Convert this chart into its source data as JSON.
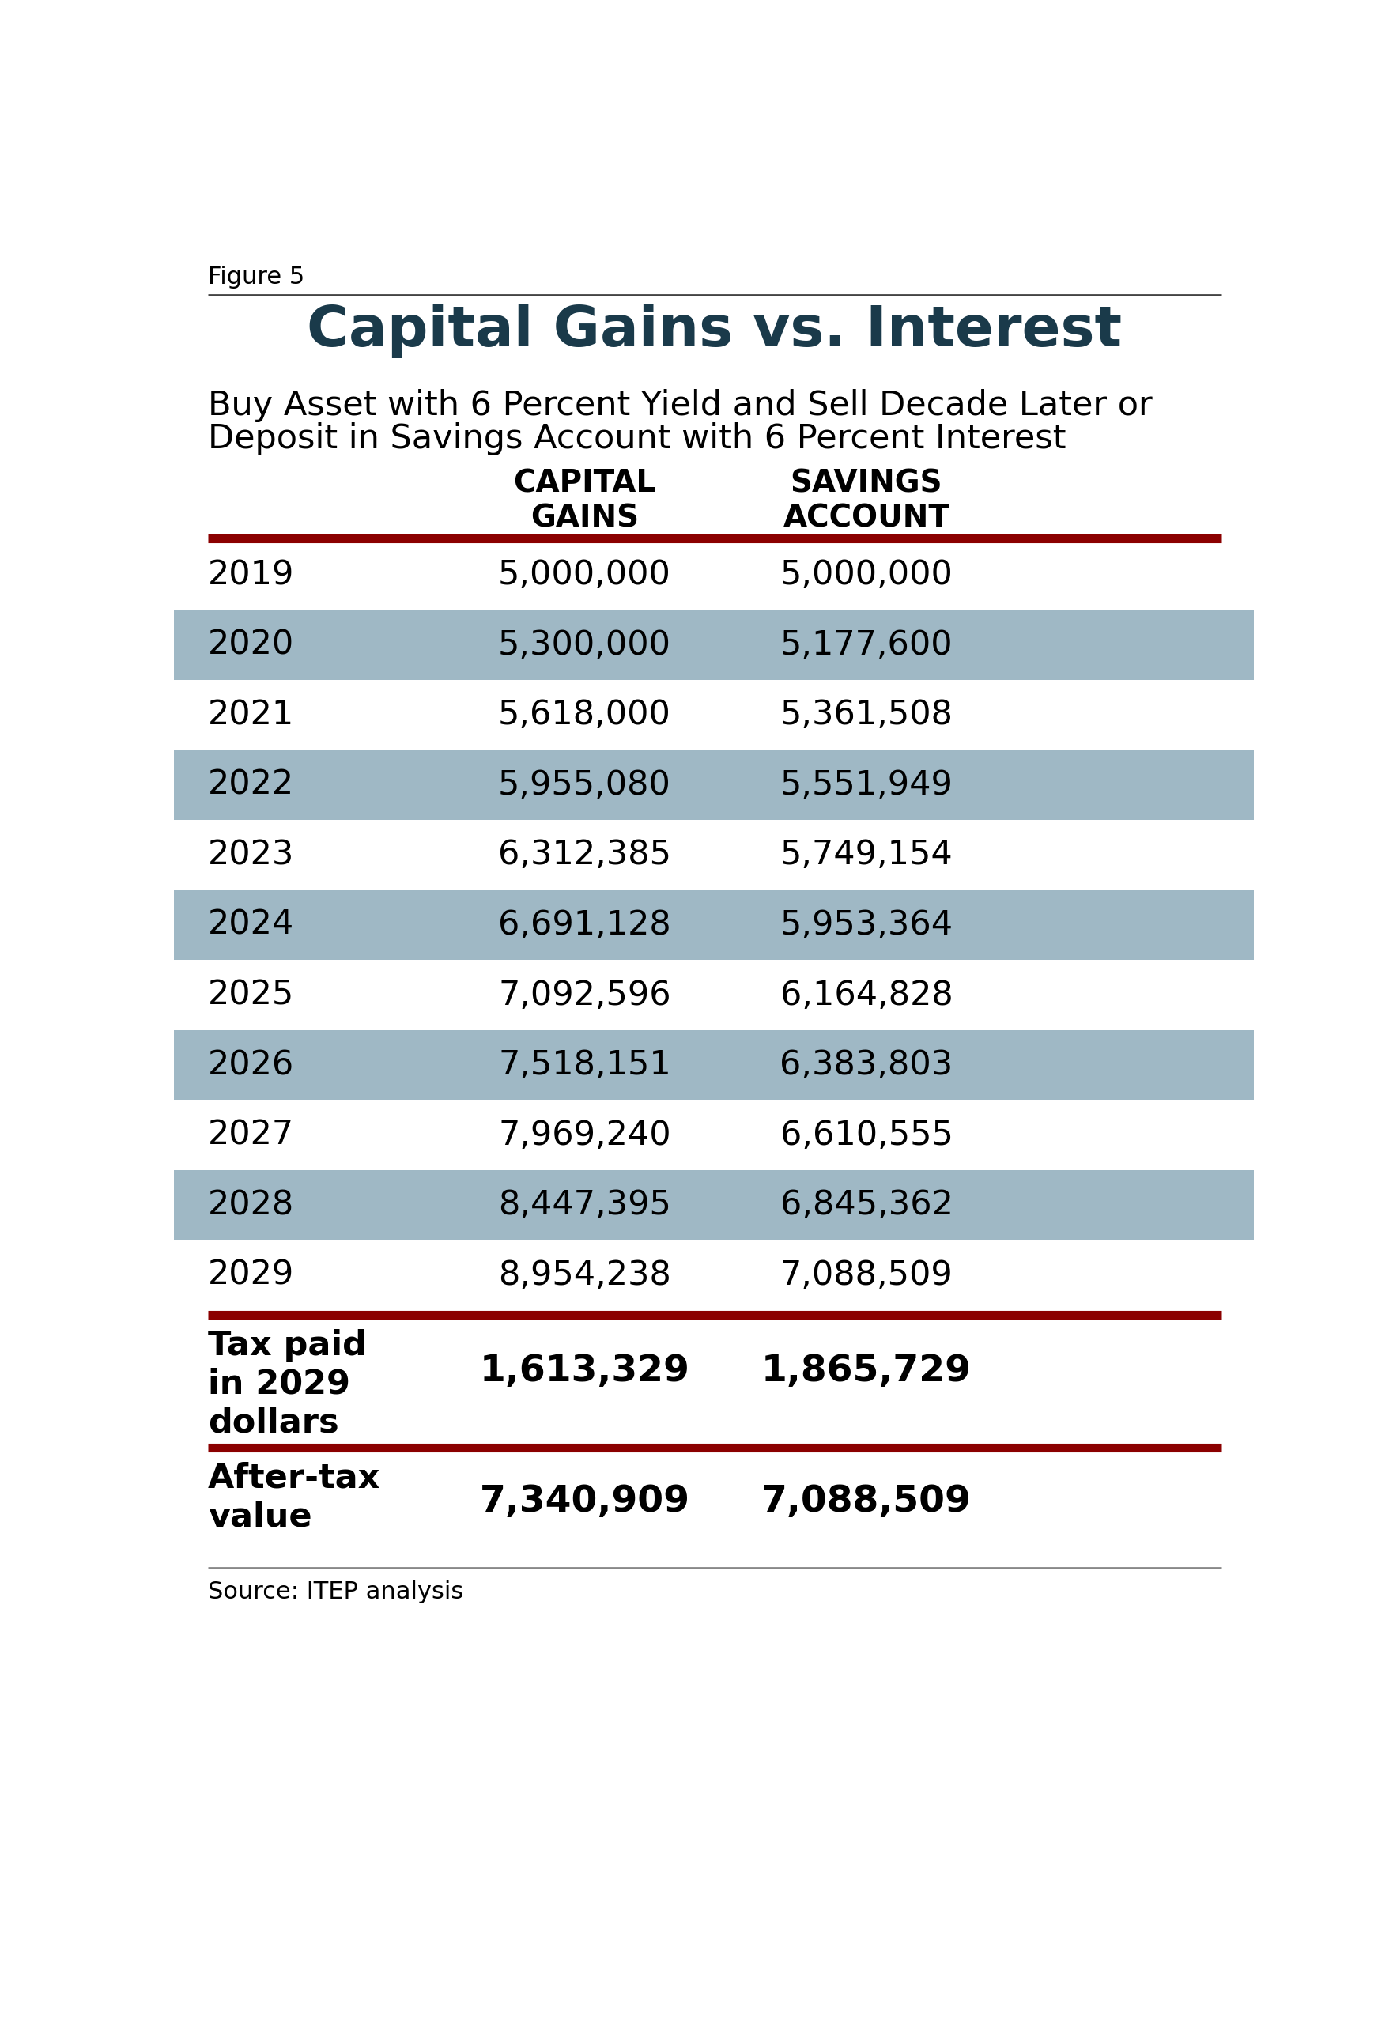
{
  "figure_label": "Figure 5",
  "title": "Capital Gains vs. Interest",
  "subtitle_line1": "Buy Asset with 6 Percent Yield and Sell Decade Later or",
  "subtitle_line2": "Deposit in Savings Account with 6 Percent Interest",
  "col_headers": [
    "CAPITAL\nGAINS",
    "SAVINGS\nACCOUNT"
  ],
  "years": [
    "2019",
    "2020",
    "2021",
    "2022",
    "2023",
    "2024",
    "2025",
    "2026",
    "2027",
    "2028",
    "2029"
  ],
  "capital_gains": [
    "5,000,000",
    "5,300,000",
    "5,618,000",
    "5,955,080",
    "6,312,385",
    "6,691,128",
    "7,092,596",
    "7,518,151",
    "7,969,240",
    "8,447,395",
    "8,954,238"
  ],
  "savings_account": [
    "5,000,000",
    "5,177,600",
    "5,361,508",
    "5,551,949",
    "5,749,154",
    "5,953,364",
    "6,164,828",
    "6,383,803",
    "6,610,555",
    "6,845,362",
    "7,088,509"
  ],
  "tax_paid_label": "Tax paid\nin 2029\ndollars",
  "tax_paid_cg": "1,613,329",
  "tax_paid_sa": "1,865,729",
  "after_tax_label": "After-tax\nvalue",
  "after_tax_cg": "7,340,909",
  "after_tax_sa": "7,088,509",
  "source": "Source: ITEP analysis",
  "bg_color": "#ffffff",
  "stripe_color": "#9fb8c5",
  "dark_red": "#8b0000",
  "dark_teal": "#1a3a4a",
  "stripe_rows": [
    1,
    3,
    5,
    7,
    9
  ]
}
